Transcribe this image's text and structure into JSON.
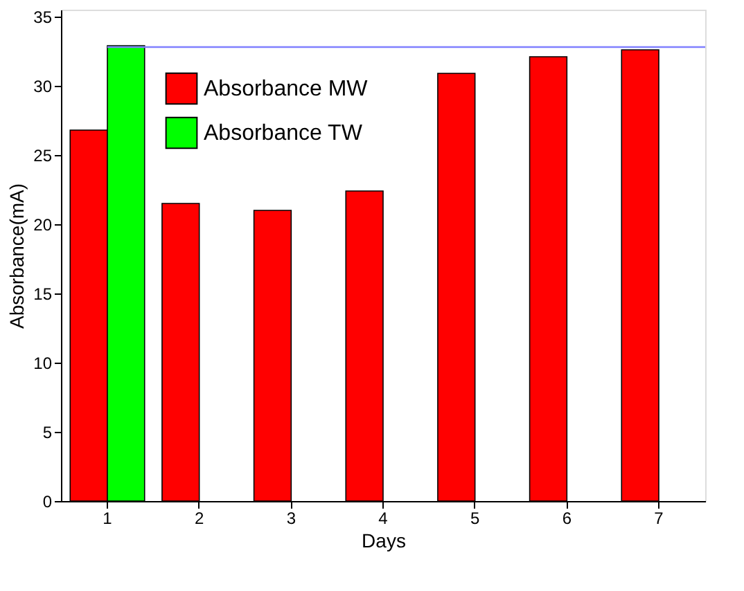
{
  "chart_data": {
    "type": "bar",
    "xlabel": "Days",
    "ylabel": "Absorbance(mA)",
    "categories": [
      "1",
      "2",
      "3",
      "4",
      "5",
      "6",
      "7"
    ],
    "series": [
      {
        "name": "Absorbance MW",
        "color": "#ff0000",
        "values": [
          26.8,
          21.5,
          21.0,
          22.4,
          30.9,
          32.1,
          32.6
        ]
      },
      {
        "name": "Absorbance TW",
        "color": "#00ff00",
        "values": [
          32.9,
          null,
          null,
          null,
          null,
          null,
          null
        ]
      }
    ],
    "ylim": [
      0,
      35.5
    ],
    "yticks": [
      0,
      5,
      10,
      15,
      20,
      25,
      30,
      35
    ],
    "ref_lines": [
      {
        "axis": "y",
        "value": 32.8,
        "color": "#8080ff"
      }
    ],
    "grid": false,
    "legend": "top left"
  }
}
